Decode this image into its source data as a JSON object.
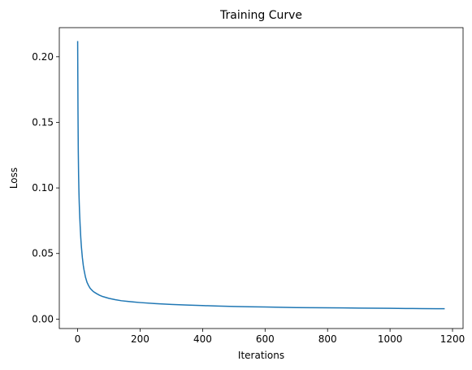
{
  "chart_data": {
    "type": "line",
    "title": "Training Curve",
    "xlabel": "Iterations",
    "ylabel": "Loss",
    "xlim": [
      -58.75,
      1233.75
    ],
    "ylim": [
      -0.0072,
      0.2222
    ],
    "grid": false,
    "legend": "none",
    "xticks": [
      0,
      200,
      400,
      600,
      800,
      1000,
      1200
    ],
    "xtick_labels": [
      "0",
      "200",
      "400",
      "600",
      "800",
      "1000",
      "1200"
    ],
    "yticks": [
      0.0,
      0.05,
      0.1,
      0.15,
      0.2
    ],
    "ytick_labels": [
      "0.00",
      "0.05",
      "0.10",
      "0.15",
      "0.20"
    ],
    "series": [
      {
        "color": "#1f77b4",
        "x": [
          0,
          1,
          2,
          3,
          4,
          5,
          6,
          8,
          10,
          12,
          15,
          18,
          20,
          25,
          30,
          35,
          40,
          45,
          50,
          60,
          70,
          80,
          90,
          100,
          120,
          140,
          160,
          180,
          200,
          250,
          300,
          350,
          400,
          450,
          500,
          550,
          600,
          650,
          700,
          750,
          800,
          850,
          900,
          950,
          1000,
          1050,
          1100,
          1150,
          1175
        ],
        "y": [
          0.212,
          0.16,
          0.128,
          0.11,
          0.098,
          0.089,
          0.082,
          0.071,
          0.062,
          0.055,
          0.047,
          0.041,
          0.038,
          0.032,
          0.028,
          0.0255,
          0.0235,
          0.0222,
          0.021,
          0.0195,
          0.0182,
          0.0172,
          0.0165,
          0.0158,
          0.0148,
          0.014,
          0.0135,
          0.013,
          0.0126,
          0.0118,
          0.0112,
          0.0107,
          0.0103,
          0.0099,
          0.0096,
          0.0094,
          0.0092,
          0.009,
          0.0088,
          0.0087,
          0.0086,
          0.0085,
          0.0084,
          0.0083,
          0.0082,
          0.0081,
          0.008,
          0.0079,
          0.0079
        ]
      }
    ]
  }
}
